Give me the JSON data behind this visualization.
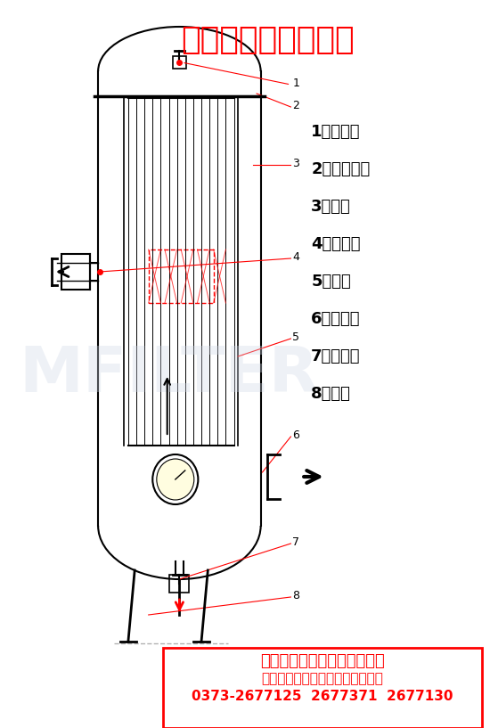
{
  "title": "风机气体精密过滤器",
  "title_color": "#FF0000",
  "bg_color": "#FFFFFF",
  "legend_items": [
    "1、放气阀",
    "2、筒体法兰",
    "3、拉杆",
    "4、进出口",
    "5、滤芯",
    "6、压差表",
    "7、排污阀",
    "8、支腿"
  ],
  "footer_text1": "新乡市迈特过滤设备有限公司",
  "footer_text2": "气体精密过滤器、旋风汽水分离器",
  "footer_text3": "0373-2677125  2677371  2677130",
  "footer_color": "#FF0000",
  "footer_bg": "#FFFFFF",
  "watermark_text": "MFILTER",
  "watermark_color": "#D0D8E8",
  "draw_color": "#000000",
  "line_color": "#FF0000",
  "label_numbers": [
    "1",
    "2",
    "3",
    "4",
    "5",
    "6",
    "7",
    "8"
  ]
}
